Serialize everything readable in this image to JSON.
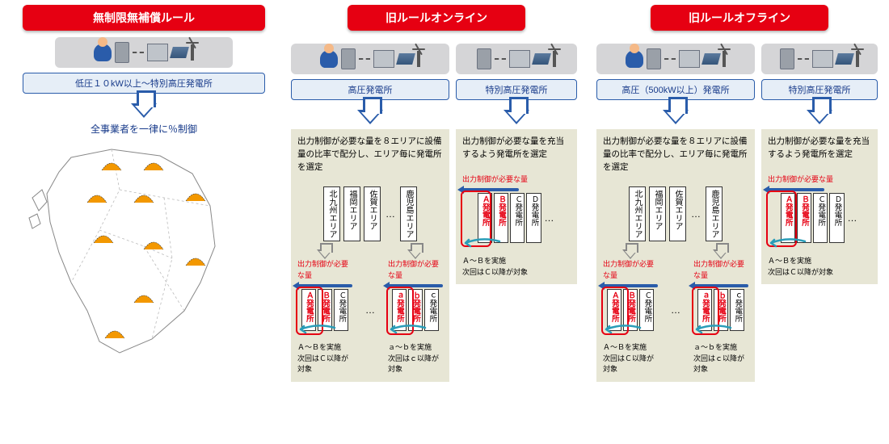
{
  "colors": {
    "red": "#e60012",
    "blue": "#2a5caa",
    "navy": "#173a8a",
    "beige": "#e7e6d5",
    "gray": "#d5d5d7",
    "cyan": "#2a9db8",
    "orange": "#f39800"
  },
  "col1": {
    "header": "無制限無補償ルール",
    "blue_label": "低圧１０kW以上〜特別高圧発電所",
    "caption": "全事業者を一律に％制御",
    "peaks": [
      [
        96,
        22
      ],
      [
        148,
        22
      ],
      [
        78,
        62
      ],
      [
        136,
        62
      ],
      [
        200,
        60
      ],
      [
        86,
        112
      ],
      [
        148,
        120
      ],
      [
        200,
        140
      ],
      [
        136,
        186
      ],
      [
        100,
        230
      ]
    ]
  },
  "col2": {
    "header": "旧ルールオンライン",
    "left": {
      "blue_label": "高圧発電所",
      "desc": "出力制御が必要な量を８エリアに設備量の比率で配分し、エリア毎に発電所を選定",
      "areas": [
        "北九州エリア",
        "福岡エリア",
        "佐賀エリア",
        "…",
        "鹿児島エリア"
      ],
      "need_label": "出力制御が必要な量",
      "blocks": [
        {
          "plants": [
            "Ａ発電所",
            "Ｂ発電所",
            "Ｃ発電所"
          ],
          "red_idx": [
            0,
            1
          ],
          "foot": "Ａ〜Ｂを実施\n次回はＣ以降が対象"
        },
        {
          "plants": [
            "ａ発電所",
            "ｂ発電所",
            "ｃ発電所"
          ],
          "red_idx": [
            0,
            1
          ],
          "foot": "ａ〜ｂを実施\n次回はｃ以降が対象"
        }
      ]
    },
    "right": {
      "blue_label": "特別高圧発電所",
      "desc": "出力制御が必要な量を充当するよう発電所を選定",
      "need_label": "出力制御が必要な量",
      "plants": [
        "Ａ発電所",
        "Ｂ発電所",
        "Ｃ発電所",
        "Ｄ発電所",
        "…"
      ],
      "red_idx": [
        0,
        1
      ],
      "foot": "Ａ〜Ｂを実施\n次回はＣ以降が対象"
    }
  },
  "col3": {
    "header": "旧ルールオフライン",
    "left": {
      "blue_label": "高圧（500kW以上）発電所",
      "desc": "出力制御が必要な量を８エリアに設備量の比率で配分し、エリア毎に発電所を選定",
      "areas": [
        "北九州エリア",
        "福岡エリア",
        "佐賀エリア",
        "…",
        "鹿児島エリア"
      ],
      "need_label": "出力制御が必要な量",
      "blocks": [
        {
          "plants": [
            "Ａ発電所",
            "Ｂ発電所",
            "Ｃ発電所"
          ],
          "red_idx": [
            0,
            1
          ],
          "foot": "Ａ〜Ｂを実施\n次回はＣ以降が対象"
        },
        {
          "plants": [
            "ａ発電所",
            "ｂ発電所",
            "ｃ発電所"
          ],
          "red_idx": [
            0,
            1
          ],
          "foot": "ａ〜ｂを実施\n次回はｃ以降が対象"
        }
      ]
    },
    "right": {
      "blue_label": "特別高圧発電所",
      "desc": "出力制御が必要な量を充当するよう発電所を選定",
      "need_label": "出力制御が必要な量",
      "plants": [
        "Ａ発電所",
        "Ｂ発電所",
        "Ｃ発電所",
        "Ｄ発電所",
        "…"
      ],
      "red_idx": [
        0,
        1
      ],
      "foot": "Ａ〜Ｂを実施\n次回はＣ以降が対象"
    }
  }
}
